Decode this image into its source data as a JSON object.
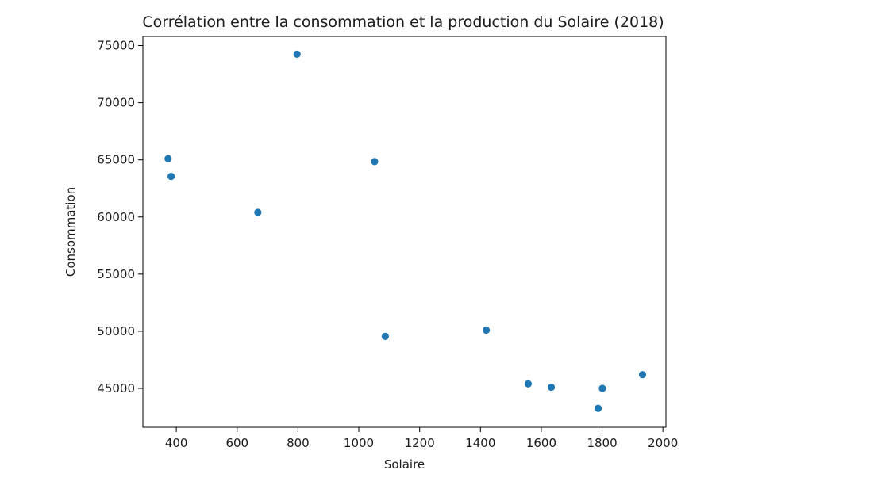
{
  "chart_data": {
    "type": "scatter",
    "title": "Corrélation entre la consommation et la production du Solaire (2018)",
    "xlabel": "Solaire",
    "ylabel": "Consommation",
    "xlim": [
      290,
      2010
    ],
    "ylim": [
      41600,
      75800
    ],
    "xticks": [
      400,
      600,
      800,
      1000,
      1200,
      1400,
      1600,
      1800,
      2000
    ],
    "yticks": [
      45000,
      50000,
      55000,
      60000,
      65000,
      70000,
      75000
    ],
    "grid": false,
    "color": "#1f77b4",
    "points": [
      {
        "x": 373,
        "y": 65100
      },
      {
        "x": 383,
        "y": 63550
      },
      {
        "x": 668,
        "y": 60400
      },
      {
        "x": 797,
        "y": 74250
      },
      {
        "x": 1052,
        "y": 64850
      },
      {
        "x": 1087,
        "y": 49550
      },
      {
        "x": 1419,
        "y": 50100
      },
      {
        "x": 1557,
        "y": 45400
      },
      {
        "x": 1633,
        "y": 45100
      },
      {
        "x": 1787,
        "y": 43250
      },
      {
        "x": 1801,
        "y": 45000
      },
      {
        "x": 1933,
        "y": 46200
      }
    ]
  }
}
